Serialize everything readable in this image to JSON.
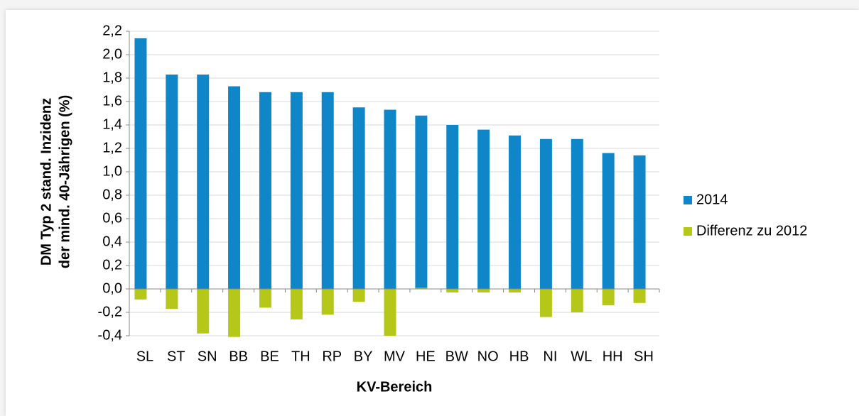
{
  "chart_data": {
    "type": "bar",
    "ylabel": [
      "DM Typ 2 stand. Inzidenz",
      "der mind. 40-Jährigen (%)"
    ],
    "xlabel": "KV-Bereich",
    "categories": [
      "SL",
      "ST",
      "SN",
      "BB",
      "BE",
      "TH",
      "RP",
      "BY",
      "MV",
      "HE",
      "BW",
      "NO",
      "HB",
      "NI",
      "WL",
      "HH",
      "SH"
    ],
    "series": [
      {
        "name": "2014",
        "color": "#0e86c8",
        "values": [
          2.14,
          1.83,
          1.83,
          1.73,
          1.68,
          1.68,
          1.68,
          1.55,
          1.53,
          1.48,
          1.4,
          1.36,
          1.31,
          1.28,
          1.28,
          1.16,
          1.14
        ]
      },
      {
        "name": "Differenz zu 2012",
        "color": "#b5c81a",
        "values": [
          -0.09,
          -0.17,
          -0.38,
          -0.41,
          -0.16,
          -0.26,
          -0.22,
          -0.11,
          -0.4,
          0.01,
          -0.03,
          -0.03,
          -0.03,
          -0.24,
          -0.2,
          -0.14,
          -0.12
        ]
      }
    ],
    "ylim": [
      -0.4,
      2.2
    ],
    "yticks": [
      {
        "value": -0.4,
        "label": "-0,4"
      },
      {
        "value": -0.2,
        "label": "-0,2"
      },
      {
        "value": 0,
        "label": "0,0"
      },
      {
        "value": 0.2,
        "label": "0,2"
      },
      {
        "value": 0.4,
        "label": "0,4"
      },
      {
        "value": 0.6,
        "label": "0,6"
      },
      {
        "value": 0.8,
        "label": "0,8"
      },
      {
        "value": 1.0,
        "label": "1,0"
      },
      {
        "value": 1.2,
        "label": "1,2"
      },
      {
        "value": 1.4,
        "label": "1,4"
      },
      {
        "value": 1.6,
        "label": "1,6"
      },
      {
        "value": 1.8,
        "label": "1,8"
      },
      {
        "value": 2.0,
        "label": "2,0"
      },
      {
        "value": 2.2,
        "label": "2,2"
      }
    ],
    "grid": true,
    "legend": "right"
  }
}
